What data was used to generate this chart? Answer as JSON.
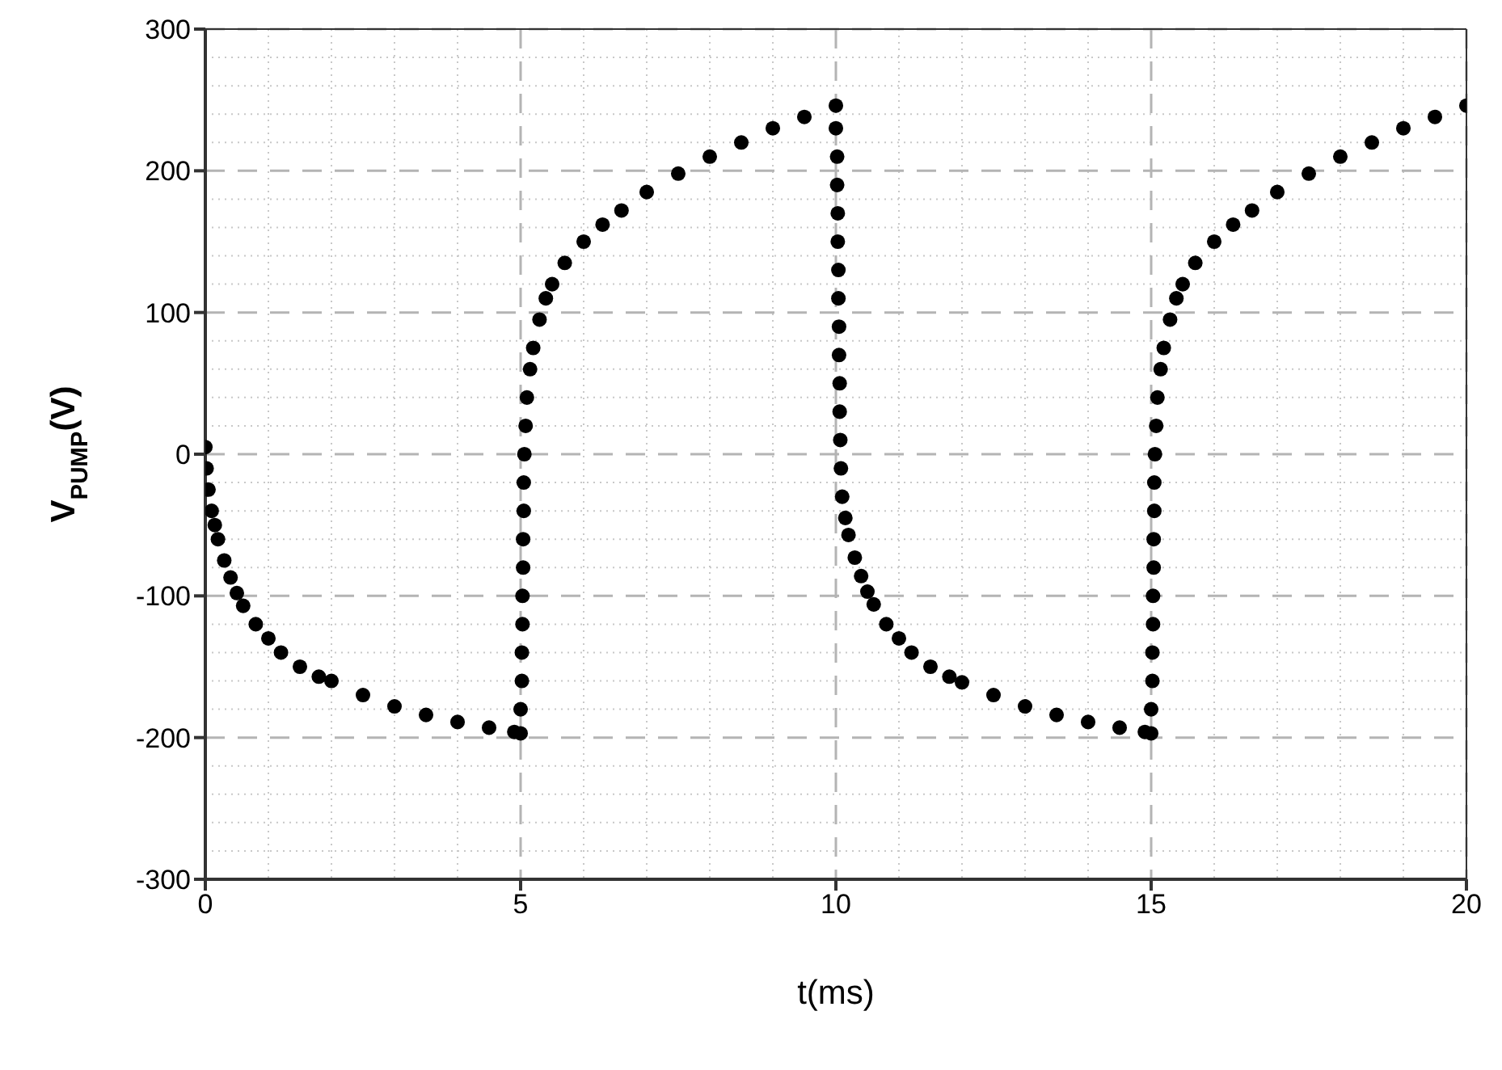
{
  "chart_data": {
    "type": "scatter",
    "xlabel": "t(ms)",
    "ylabel": "V$_{PUMP}$(V)",
    "xlim": [
      0,
      20
    ],
    "xticks": [
      0,
      5,
      10,
      15,
      20
    ],
    "ylim": [
      -300,
      300
    ],
    "yticks": [
      -300,
      -200,
      -100,
      0,
      100,
      200,
      300
    ],
    "grid": true,
    "marker": "circle",
    "series": [
      {
        "color": "#000000",
        "x": [
          0,
          0.02,
          0.05,
          0.1,
          0.15,
          0.2,
          0.3,
          0.4,
          0.5,
          0.6,
          0.8,
          1.0,
          1.2,
          1.5,
          1.8,
          2.0,
          2.5,
          3.0,
          3.5,
          4.0,
          4.5,
          4.9,
          5.0,
          5.0,
          5.02,
          5.02,
          5.03,
          5.03,
          5.04,
          5.04,
          5.05,
          5.05,
          5.06,
          5.08,
          5.1,
          5.15,
          5.2,
          5.3,
          5.4,
          5.5,
          5.7,
          6.0,
          6.3,
          6.6,
          7.0,
          7.5,
          8.0,
          8.5,
          9.0,
          9.5,
          10.0,
          10.0,
          10.02,
          10.02,
          10.03,
          10.03,
          10.04,
          10.04,
          10.05,
          10.05,
          10.06,
          10.06,
          10.07,
          10.08,
          10.1,
          10.15,
          10.2,
          10.3,
          10.4,
          10.5,
          10.6,
          10.8,
          11.0,
          11.2,
          11.5,
          11.8,
          12.0,
          12.5,
          13.0,
          13.5,
          14.0,
          14.5,
          14.9,
          15.0,
          15.0,
          15.02,
          15.02,
          15.03,
          15.03,
          15.04,
          15.04,
          15.05,
          15.05,
          15.06,
          15.08,
          15.1,
          15.15,
          15.2,
          15.3,
          15.4,
          15.5,
          15.7,
          16.0,
          16.3,
          16.6,
          17.0,
          17.5,
          18.0,
          18.5,
          19.0,
          19.5,
          20.0
        ],
        "values": [
          5,
          -10,
          -25,
          -40,
          -50,
          -60,
          -75,
          -87,
          -98,
          -107,
          -120,
          -130,
          -140,
          -150,
          -157,
          -160,
          -170,
          -178,
          -184,
          -189,
          -193,
          -196,
          -197,
          -180,
          -160,
          -140,
          -120,
          -100,
          -80,
          -60,
          -40,
          -20,
          0,
          20,
          40,
          60,
          75,
          95,
          110,
          120,
          135,
          150,
          162,
          172,
          185,
          198,
          210,
          220,
          230,
          238,
          246,
          230,
          210,
          190,
          170,
          150,
          130,
          110,
          90,
          70,
          50,
          30,
          10,
          -10,
          -30,
          -45,
          -57,
          -73,
          -86,
          -97,
          -106,
          -120,
          -130,
          -140,
          -150,
          -157,
          -161,
          -170,
          -178,
          -184,
          -189,
          -193,
          -196,
          -197,
          -180,
          -160,
          -140,
          -120,
          -100,
          -80,
          -60,
          -40,
          -20,
          0,
          20,
          40,
          60,
          75,
          95,
          110,
          120,
          135,
          150,
          162,
          172,
          185,
          198,
          210,
          220,
          230,
          238,
          246
        ]
      }
    ]
  }
}
